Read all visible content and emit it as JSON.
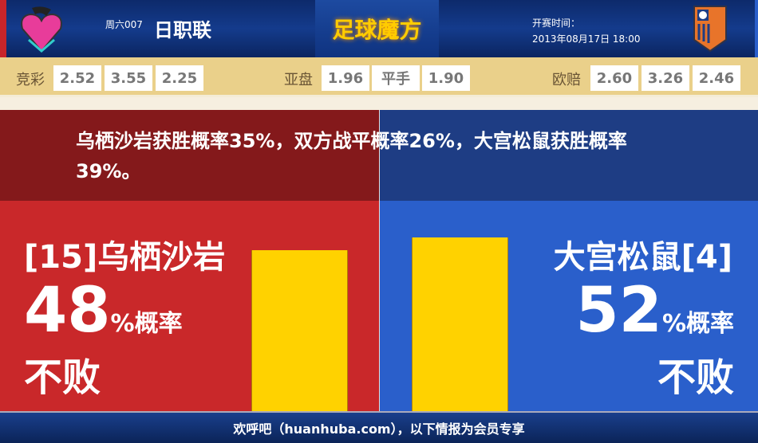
{
  "header": {
    "week": "周六007",
    "league": "日职联",
    "brand": "足球魔方",
    "time_label": "开赛时间：",
    "time_value": "2013年08月17日 18:00",
    "home_logo": "sagan-tosu-logo",
    "away_logo": "omiya-ardija-logo"
  },
  "odds": {
    "jingcai": {
      "label": "竞彩",
      "values": [
        "2.52",
        "3.55",
        "2.25"
      ]
    },
    "yapan": {
      "label": "亚盘",
      "values": [
        "1.96",
        "平手",
        "1.90"
      ]
    },
    "oupei": {
      "label": "欧赔",
      "values": [
        "2.60",
        "3.26",
        "2.46"
      ]
    }
  },
  "summary": "乌栖沙岩获胜概率35%，双方战平概率26%，大宫松鼠获胜概率39%。",
  "home": {
    "name": "[15]乌栖沙岩",
    "percent": "48",
    "unit": "%概率",
    "result": "不败",
    "color": "#c9282a"
  },
  "away": {
    "name": "大宫松鼠[4]",
    "percent": "52",
    "unit": "%概率",
    "result": "不败",
    "color": "#2a5fcb"
  },
  "bar_color": "#ffd200",
  "footer": "欢呼吧（huanhuba.com），以下情报为会员专享"
}
